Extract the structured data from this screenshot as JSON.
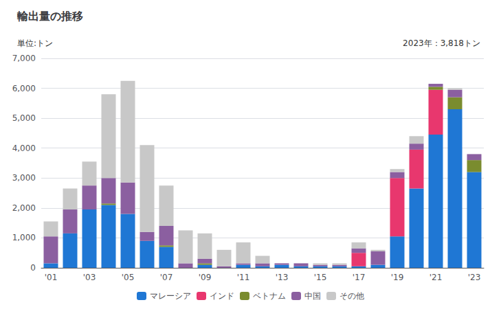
{
  "chart_data": {
    "type": "bar",
    "title": "輸出量の推移",
    "subtitle": "単位:トン",
    "annotation": "2023年：3,818トン",
    "stacked": true,
    "grid": true,
    "legend": "bottom",
    "categories": [
      "'01",
      null,
      "'03",
      null,
      "'05",
      null,
      "'07",
      null,
      "'09",
      null,
      "'11",
      null,
      "'13",
      null,
      "'15",
      null,
      "'17",
      null,
      "'19",
      null,
      "'21",
      null,
      "'23"
    ],
    "series": [
      {
        "name": "マレーシア",
        "color": "#1f77d4",
        "values": [
          150,
          1150,
          1950,
          2100,
          1800,
          900,
          700,
          0,
          100,
          0,
          100,
          50,
          100,
          50,
          50,
          50,
          50,
          100,
          1050,
          2650,
          4450,
          5300,
          3200
        ]
      },
      {
        "name": "インド",
        "color": "#e8376e",
        "values": [
          0,
          0,
          0,
          0,
          0,
          0,
          0,
          0,
          0,
          0,
          0,
          0,
          0,
          0,
          0,
          0,
          450,
          0,
          1950,
          1300,
          1500,
          0,
          0
        ]
      },
      {
        "name": "ベトナム",
        "color": "#7a8c2e",
        "values": [
          0,
          0,
          0,
          50,
          0,
          0,
          50,
          0,
          50,
          0,
          0,
          0,
          0,
          0,
          0,
          0,
          0,
          0,
          0,
          0,
          100,
          400,
          400
        ]
      },
      {
        "name": "中国",
        "color": "#8b5fa0",
        "values": [
          900,
          800,
          800,
          850,
          1050,
          300,
          650,
          150,
          150,
          50,
          50,
          100,
          50,
          100,
          50,
          50,
          150,
          450,
          200,
          200,
          100,
          250,
          200
        ]
      },
      {
        "name": "その他",
        "color": "#c8c8c8",
        "values": [
          500,
          700,
          800,
          2800,
          3400,
          2900,
          1350,
          1100,
          850,
          550,
          700,
          250,
          0,
          0,
          50,
          50,
          200,
          50,
          100,
          250,
          0,
          50,
          0
        ]
      }
    ],
    "ylim": [
      0,
      7000
    ],
    "yticks": [
      0,
      {
        "value": 1000,
        "label": "1,000"
      },
      {
        "value": 2000,
        "label": "2,000"
      },
      {
        "value": 3000,
        "label": "3,000"
      },
      {
        "value": 4000,
        "label": "4,000"
      },
      {
        "value": 5000,
        "label": "5,000"
      },
      {
        "value": 6000,
        "label": "6,000"
      },
      {
        "value": 7000,
        "label": "7,000"
      }
    ]
  }
}
